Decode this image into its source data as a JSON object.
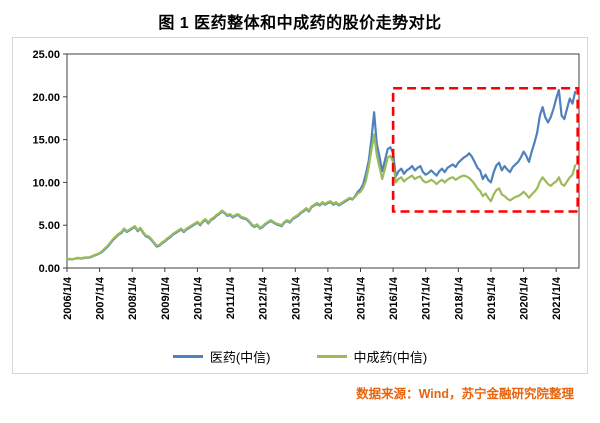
{
  "title": "图 1 医药整体和中成药的股价走势对比",
  "source_note": "数据来源：Wind，苏宁金融研究院整理",
  "colors": {
    "pharma_line": "#4F81BD",
    "tcm_line": "#9BBB59",
    "highlight_box": "#FF0000",
    "source_text": "#E8650D",
    "axis": "#404040"
  },
  "chart_data": {
    "type": "line",
    "title": "图 1 医药整体和中成药的股价走势对比",
    "xlabel": "",
    "ylabel": "",
    "grid": false,
    "legend_position": "bottom",
    "xlim": [
      2006,
      2021.7
    ],
    "ylim": [
      0,
      25
    ],
    "y_ticks": [
      0,
      5,
      10,
      15,
      20,
      25
    ],
    "y_tick_labels": [
      "0.00",
      "5.00",
      "10.00",
      "15.00",
      "20.00",
      "25.00"
    ],
    "x_tick_years": [
      2006,
      2007,
      2008,
      2009,
      2010,
      2011,
      2012,
      2013,
      2014,
      2015,
      2016,
      2017,
      2018,
      2019,
      2020,
      2021
    ],
    "x_tick_labels": [
      "2006/1/4",
      "2007/1/4",
      "2008/1/4",
      "2009/1/4",
      "2010/1/4",
      "2011/1/4",
      "2012/1/4",
      "2013/1/4",
      "2014/1/4",
      "2015/1/4",
      "2016/1/4",
      "2017/1/4",
      "2018/1/4",
      "2019/1/4",
      "2020/1/4",
      "2021/1/4"
    ],
    "x_start_year": 2006,
    "points_per_year": 12,
    "highlight_box": {
      "x0": 2016.0,
      "x1": 2021.66,
      "y0": 6.6,
      "y1": 21.0
    },
    "series": [
      {
        "name": "医药(中信)",
        "color": "#4F81BD",
        "monthly_values": [
          1.0,
          1.05,
          1.0,
          1.1,
          1.15,
          1.1,
          1.15,
          1.2,
          1.2,
          1.3,
          1.45,
          1.55,
          1.7,
          1.9,
          2.2,
          2.5,
          2.9,
          3.3,
          3.6,
          3.9,
          4.1,
          4.5,
          4.2,
          4.4,
          4.6,
          4.8,
          4.3,
          4.6,
          4.1,
          3.7,
          3.6,
          3.3,
          2.9,
          2.5,
          2.6,
          2.9,
          3.1,
          3.4,
          3.6,
          3.9,
          4.1,
          4.3,
          4.5,
          4.2,
          4.5,
          4.7,
          4.9,
          5.1,
          5.3,
          5.0,
          5.4,
          5.6,
          5.2,
          5.6,
          5.8,
          6.1,
          6.3,
          6.6,
          6.4,
          6.1,
          6.2,
          5.9,
          6.1,
          6.2,
          5.9,
          5.8,
          5.7,
          5.4,
          5.0,
          4.8,
          5.0,
          4.6,
          4.8,
          5.1,
          5.3,
          5.5,
          5.3,
          5.1,
          5.0,
          4.9,
          5.3,
          5.5,
          5.3,
          5.7,
          5.9,
          6.1,
          6.4,
          6.6,
          6.9,
          6.6,
          7.1,
          7.3,
          7.5,
          7.3,
          7.6,
          7.4,
          7.6,
          7.7,
          7.4,
          7.6,
          7.3,
          7.5,
          7.7,
          7.9,
          8.1,
          8.0,
          8.4,
          8.9,
          9.2,
          9.8,
          11.0,
          12.5,
          15.0,
          18.2,
          14.5,
          13.0,
          11.3,
          12.6,
          13.9,
          14.1,
          13.4,
          10.7,
          11.3,
          11.6,
          11.0,
          11.4,
          11.6,
          11.9,
          11.4,
          11.7,
          11.9,
          11.2,
          10.9,
          11.1,
          11.4,
          11.1,
          10.8,
          11.3,
          11.6,
          11.2,
          11.7,
          11.9,
          12.1,
          11.8,
          12.3,
          12.6,
          12.9,
          13.1,
          13.4,
          13.0,
          12.4,
          11.7,
          11.4,
          10.4,
          10.9,
          10.3,
          10.0,
          11.2,
          12.0,
          12.3,
          11.4,
          11.9,
          11.5,
          11.2,
          11.8,
          12.1,
          12.4,
          12.9,
          13.6,
          13.1,
          12.4,
          13.6,
          14.6,
          15.8,
          17.8,
          18.8,
          17.6,
          17.0,
          17.6,
          18.6,
          19.8,
          20.8,
          17.8,
          17.4,
          18.6,
          19.8,
          19.2,
          20.6
        ]
      },
      {
        "name": "中成药(中信)",
        "color": "#9BBB59",
        "monthly_values": [
          1.0,
          1.05,
          1.0,
          1.1,
          1.2,
          1.1,
          1.2,
          1.25,
          1.25,
          1.35,
          1.5,
          1.6,
          1.75,
          2.0,
          2.3,
          2.6,
          3.0,
          3.4,
          3.7,
          4.0,
          4.2,
          4.6,
          4.3,
          4.5,
          4.7,
          4.9,
          4.4,
          4.7,
          4.2,
          3.8,
          3.7,
          3.4,
          3.0,
          2.6,
          2.7,
          3.0,
          3.2,
          3.5,
          3.7,
          4.0,
          4.2,
          4.4,
          4.6,
          4.3,
          4.6,
          4.8,
          5.0,
          5.2,
          5.4,
          5.1,
          5.5,
          5.7,
          5.3,
          5.7,
          5.9,
          6.2,
          6.4,
          6.7,
          6.5,
          6.2,
          6.3,
          6.0,
          6.2,
          6.3,
          6.0,
          5.9,
          5.8,
          5.5,
          5.1,
          4.9,
          5.1,
          4.7,
          4.9,
          5.2,
          5.4,
          5.6,
          5.4,
          5.2,
          5.1,
          5.0,
          5.4,
          5.6,
          5.4,
          5.8,
          6.0,
          6.2,
          6.5,
          6.7,
          7.0,
          6.7,
          7.2,
          7.4,
          7.6,
          7.4,
          7.7,
          7.5,
          7.7,
          7.8,
          7.5,
          7.7,
          7.4,
          7.6,
          7.8,
          8.0,
          8.2,
          8.1,
          8.3,
          8.7,
          8.9,
          9.4,
          10.2,
          11.8,
          13.8,
          15.6,
          13.2,
          11.8,
          10.4,
          11.6,
          12.9,
          13.1,
          12.4,
          10.0,
          10.4,
          10.6,
          10.1,
          10.4,
          10.6,
          10.8,
          10.4,
          10.6,
          10.7,
          10.2,
          10.0,
          10.1,
          10.3,
          10.1,
          9.8,
          10.1,
          10.3,
          10.0,
          10.3,
          10.5,
          10.6,
          10.3,
          10.5,
          10.7,
          10.8,
          10.7,
          10.5,
          10.2,
          9.8,
          9.3,
          9.0,
          8.4,
          8.7,
          8.2,
          7.8,
          8.6,
          9.1,
          9.3,
          8.6,
          8.4,
          8.1,
          7.9,
          8.1,
          8.3,
          8.4,
          8.6,
          8.9,
          8.6,
          8.2,
          8.6,
          8.9,
          9.3,
          10.1,
          10.6,
          10.2,
          9.8,
          9.6,
          9.9,
          10.1,
          10.6,
          9.8,
          9.6,
          10.1,
          10.6,
          10.9,
          12.0
        ]
      }
    ]
  }
}
